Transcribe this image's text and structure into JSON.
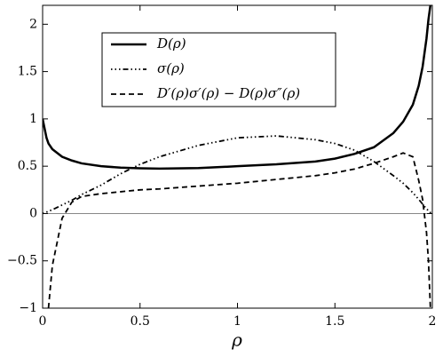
{
  "chart_data": {
    "type": "line",
    "xlabel": "ρ",
    "x": [
      0,
      0.02,
      0.03,
      0.05,
      0.1,
      0.15,
      0.2,
      0.3,
      0.4,
      0.5,
      0.6,
      0.8,
      1.0,
      1.2,
      1.4,
      1.5,
      1.6,
      1.7,
      1.8,
      1.85,
      1.9,
      1.93,
      1.95,
      1.97,
      1.98,
      1.99,
      2.0
    ],
    "series": [
      {
        "name": "D(ρ)",
        "color": "#000000",
        "style": "solid",
        "values": [
          1.0,
          0.8,
          0.74,
          0.68,
          0.6,
          0.56,
          0.53,
          0.5,
          0.485,
          0.478,
          0.475,
          0.48,
          0.5,
          0.52,
          0.55,
          0.58,
          0.63,
          0.7,
          0.85,
          0.97,
          1.15,
          1.35,
          1.55,
          1.85,
          2.05,
          2.2,
          null
        ]
      },
      {
        "name": "σ(ρ)",
        "color": "#000000",
        "style": "dashdotdot",
        "values": [
          0,
          0.015,
          0.025,
          0.04,
          0.09,
          0.14,
          0.2,
          0.3,
          0.42,
          0.52,
          0.6,
          0.72,
          0.8,
          0.82,
          0.78,
          0.74,
          0.67,
          0.55,
          0.4,
          0.32,
          0.22,
          0.15,
          0.1,
          0.05,
          0.03,
          0.01,
          0
        ]
      },
      {
        "name": "D′(ρ)σ′(ρ) − D(ρ)σ″(ρ)",
        "color": "#000000",
        "style": "dashed",
        "values": [
          null,
          null,
          -1,
          -0.55,
          -0.05,
          0.12,
          0.18,
          0.21,
          0.23,
          0.25,
          0.26,
          0.29,
          0.32,
          0.36,
          0.4,
          0.43,
          0.47,
          0.53,
          0.6,
          0.64,
          0.6,
          0.35,
          0.15,
          -0.2,
          -0.5,
          -1,
          null
        ]
      }
    ],
    "xlim": [
      0,
      2
    ],
    "ylim": [
      -1,
      2.2
    ],
    "xticks": [
      0,
      0.5,
      1,
      1.5,
      2
    ],
    "yticks": [
      {
        "value": -1,
        "label": "−1"
      },
      {
        "value": -0.5,
        "label": "−0.5"
      },
      0,
      0.5,
      1,
      1.5,
      2
    ],
    "zero_line": true,
    "legend": "upper center"
  }
}
